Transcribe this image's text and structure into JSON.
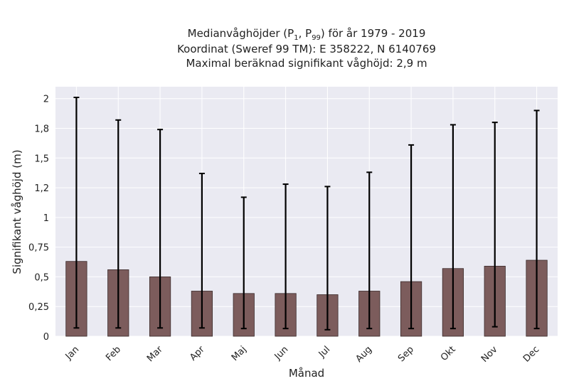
{
  "chart_data": {
    "type": "bar",
    "title_line1": "Medianvåghöjder (P",
    "title_line1_sub1": "1",
    "title_line1_mid": ", P",
    "title_line1_sub2": "99",
    "title_line1_end": ") för år 1979 - 2019",
    "title_line2": "Koordinat (Sweref 99 TM): E 358222, N 6140769",
    "title_line3": "Maximal beräknad signifikant våghöjd: 2,9 m",
    "xlabel": "Månad",
    "ylabel": "Signifikant våghöjd (m)",
    "categories": [
      "Jan",
      "Feb",
      "Mar",
      "Apr",
      "Maj",
      "Jun",
      "Jul",
      "Aug",
      "Sep",
      "Okt",
      "Nov",
      "Dec"
    ],
    "values": [
      0.63,
      0.56,
      0.5,
      0.38,
      0.36,
      0.36,
      0.35,
      0.38,
      0.46,
      0.57,
      0.59,
      0.64
    ],
    "error_low": [
      0.07,
      0.07,
      0.07,
      0.07,
      0.065,
      0.065,
      0.055,
      0.065,
      0.065,
      0.065,
      0.08,
      0.065
    ],
    "error_high": [
      2.01,
      1.82,
      1.74,
      1.37,
      1.17,
      1.28,
      1.26,
      1.38,
      1.61,
      1.78,
      1.8,
      1.9
    ],
    "ylim": [
      0,
      2.1
    ],
    "yticks": [
      0,
      0.25,
      0.5,
      0.75,
      1,
      1.25,
      1.5,
      1.75,
      2
    ],
    "ytick_labels": [
      "0",
      "0,25",
      "0,5",
      "0,75",
      "1",
      "1,2",
      "1,5",
      "1,8",
      "2"
    ],
    "grid": true,
    "colors": {
      "bar": "#7c5c5c",
      "bar_edge": "#3a2a2a",
      "errorbar": "#000000",
      "plot_bg": "#eaeaf2",
      "grid": "#ffffff"
    }
  }
}
